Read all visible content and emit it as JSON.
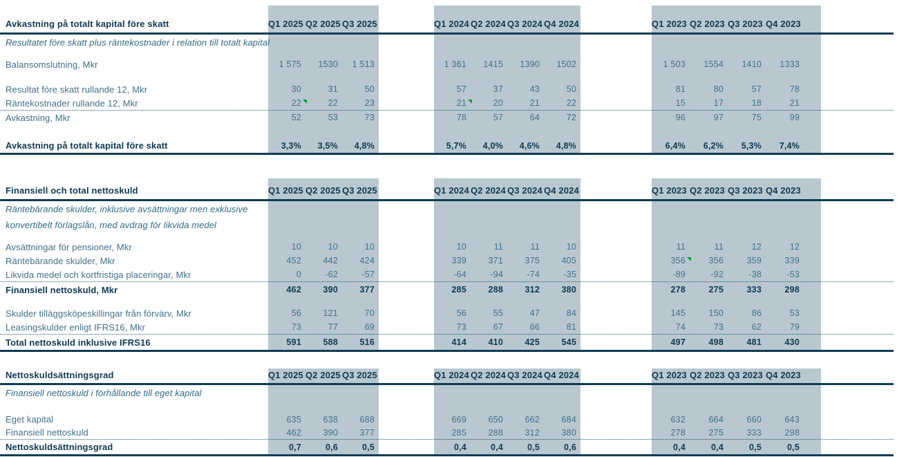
{
  "colors": {
    "band": "#b9c8d0",
    "rule": "#0e3c54",
    "dotted_rule": "#1f5672",
    "text_regular": "#41708a",
    "text_bold": "#0f3a52",
    "text_italic": "#2f6b84",
    "note_marker_green": "#00a33f",
    "background": "#ffffff"
  },
  "column_headers": [
    "Q1 2025",
    "Q2 2025",
    "Q3 2025",
    "Q1 2024",
    "Q2 2024",
    "Q3 2024",
    "Q4 2024",
    "Q1 2023",
    "Q2 2023",
    "Q3 2023",
    "Q4 2023"
  ],
  "tables": [
    {
      "title": "Avkastning på totalt kapital före skatt",
      "rows": [
        {
          "kind": "italic",
          "text": "Resultatet före skatt plus räntekostnader i relation till totalt kapital"
        },
        {
          "kind": "spacer",
          "h": 10
        },
        {
          "kind": "data",
          "label": "Balansomslutning, Mkr",
          "values": [
            "1 575",
            "1530",
            "1 513",
            "1 361",
            "1415",
            "1390",
            "1502",
            "1 503",
            "1554",
            "1410",
            "1333"
          ]
        },
        {
          "kind": "spacer",
          "h": 16
        },
        {
          "kind": "data",
          "label": "Resultat före skatt rullande 12, Mkr",
          "values": [
            "30",
            "31",
            "50",
            "57",
            "37",
            "43",
            "50",
            "81",
            "80",
            "57",
            "78"
          ]
        },
        {
          "kind": "data",
          "label": "Räntekostnader rullande 12, Mkr",
          "dotted": true,
          "markers": [
            0,
            3
          ],
          "values": [
            "22",
            "22",
            "23",
            "21",
            "20",
            "21",
            "22",
            "15",
            "17",
            "18",
            "21"
          ]
        },
        {
          "kind": "data",
          "label": "Avkastning, Mkr",
          "values": [
            "52",
            "53",
            "73",
            "78",
            "57",
            "64",
            "72",
            "96",
            "97",
            "75",
            "99"
          ]
        },
        {
          "kind": "spacer",
          "h": 20
        },
        {
          "kind": "total",
          "label": "Avkastning på totalt kapital före skatt",
          "values": [
            "3,3%",
            "3,5%",
            "4,8%",
            "5,7%",
            "4,0%",
            "4,6%",
            "4,8%",
            "6,4%",
            "6,2%",
            "5,3%",
            "7,4%"
          ]
        }
      ]
    },
    {
      "title": "Finansiell och total nettoskuld",
      "rows": [
        {
          "kind": "italic",
          "text": "Räntebärande skulder, inklusive avsättningar men exklusive"
        },
        {
          "kind": "italic",
          "text": "konvertibelt förlagslån, med avdrag för likvida medel"
        },
        {
          "kind": "spacer",
          "h": 10
        },
        {
          "kind": "data",
          "label": "Avsättningar för pensioner, Mkr",
          "values": [
            "10",
            "10",
            "10",
            "10",
            "11",
            "11",
            "10",
            "11",
            "11",
            "12",
            "12"
          ]
        },
        {
          "kind": "data",
          "label": "Räntebärande skulder, Mkr",
          "markers": [
            7
          ],
          "values": [
            "452",
            "442",
            "424",
            "339",
            "371",
            "375",
            "405",
            "356",
            "356",
            "359",
            "339"
          ]
        },
        {
          "kind": "data",
          "label": "Likvida medel och kortfristiga placeringar, Mkr",
          "dotted": true,
          "values": [
            "0",
            "-62",
            "-57",
            "-64",
            "-94",
            "-74",
            "-35",
            "-89",
            "-92",
            "-38",
            "-53"
          ]
        },
        {
          "kind": "total",
          "label": "Finansiell nettoskuld, Mkr",
          "values": [
            "462",
            "390",
            "377",
            "285",
            "288",
            "312",
            "380",
            "278",
            "275",
            "333",
            "298"
          ]
        },
        {
          "kind": "spacer",
          "h": 13
        },
        {
          "kind": "data",
          "label": "Skulder tilläggsköpeskillingar från förvärv, Mkr",
          "values": [
            "56",
            "121",
            "70",
            "56",
            "55",
            "47",
            "84",
            "145",
            "150",
            "86",
            "53"
          ]
        },
        {
          "kind": "data",
          "label": "Leasingskulder enligt IFRS16, Mkr",
          "dotted": true,
          "values": [
            "73",
            "77",
            "69",
            "73",
            "67",
            "66",
            "81",
            "74",
            "73",
            "62",
            "79"
          ]
        },
        {
          "kind": "total",
          "label": "Total nettoskuld inklusive IFRS16",
          "values": [
            "591",
            "588",
            "516",
            "414",
            "410",
            "425",
            "545",
            "497",
            "498",
            "481",
            "430"
          ]
        }
      ]
    },
    {
      "title": "Nettoskuldsättningsgrad",
      "rows": [
        {
          "kind": "italic",
          "text": "Finansiell nettoskuld i förhållande till eget kapital"
        },
        {
          "kind": "spacer",
          "h": 17
        },
        {
          "kind": "data",
          "label": "Eget kapital",
          "values": [
            "635",
            "638",
            "688",
            "669",
            "650",
            "662",
            "684",
            "632",
            "664",
            "660",
            "643"
          ]
        },
        {
          "kind": "data",
          "label": "Finansiell nettoskuld",
          "dotted": true,
          "values": [
            "462",
            "390",
            "377",
            "285",
            "288",
            "312",
            "380",
            "278",
            "275",
            "333",
            "298"
          ]
        },
        {
          "kind": "total",
          "label": "Nettoskuldsättningsgrad",
          "values": [
            "0,7",
            "0,6",
            "0,5",
            "0,4",
            "0,4",
            "0,5",
            "0,6",
            "0,4",
            "0,4",
            "0,5",
            "0,5"
          ]
        }
      ]
    }
  ]
}
